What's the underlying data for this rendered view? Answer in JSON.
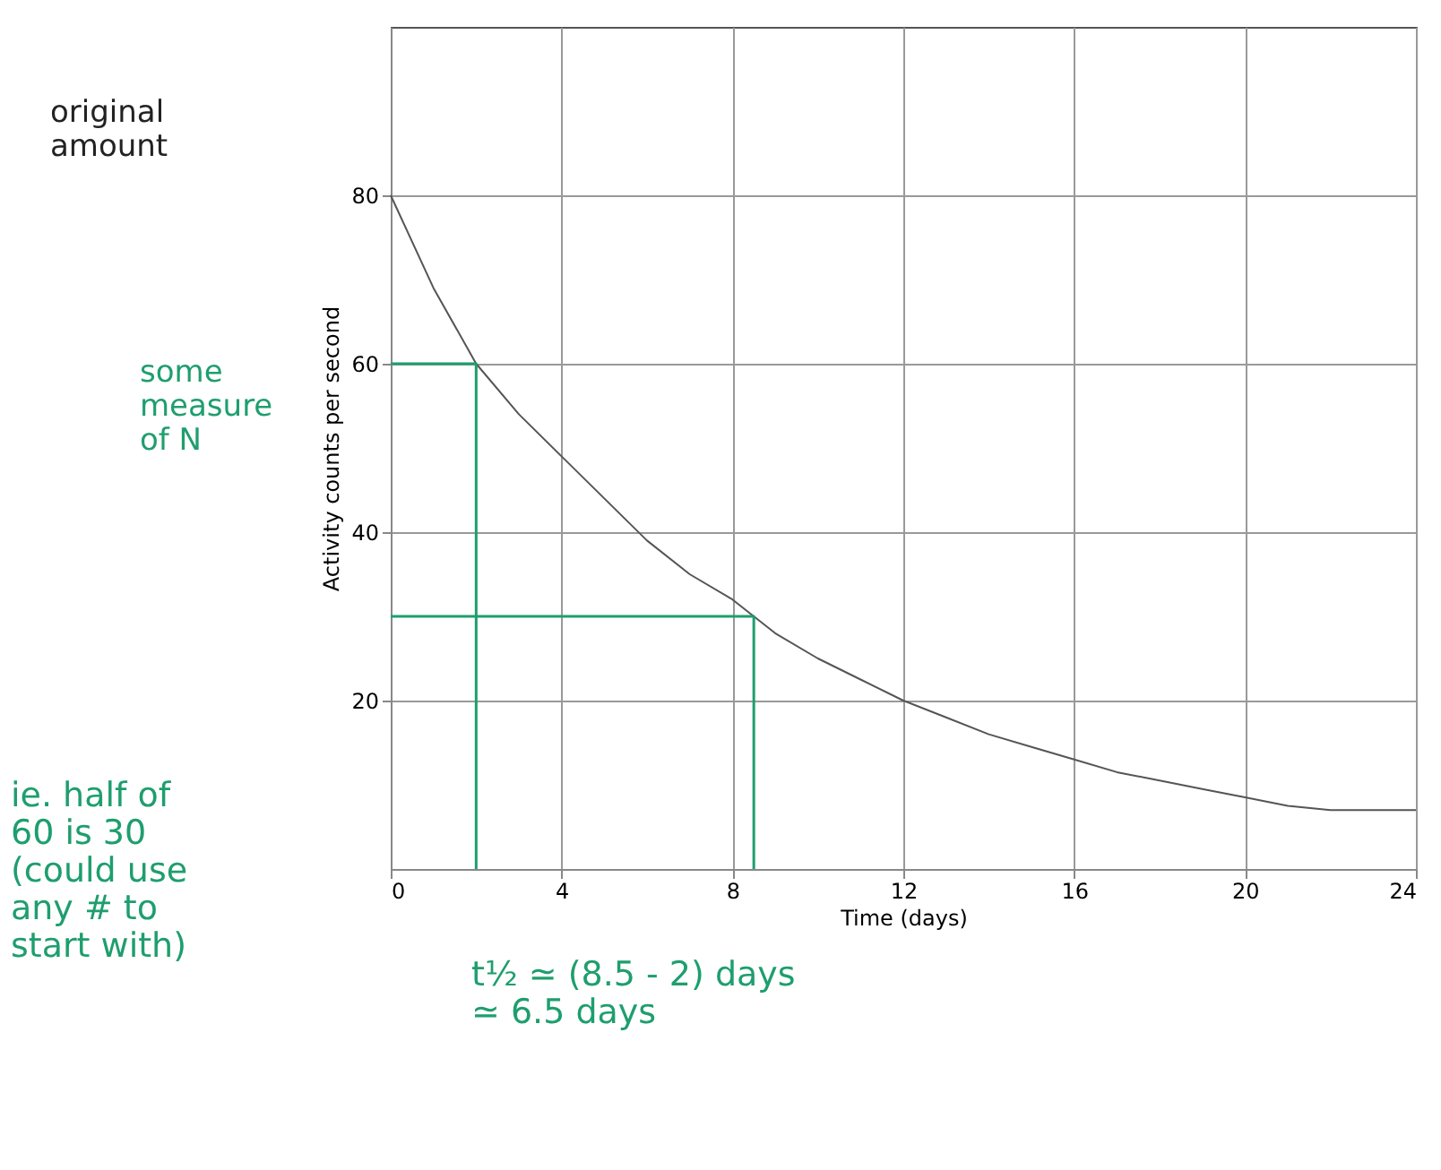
{
  "chart_data": {
    "type": "line",
    "xlabel": "Time (days)",
    "ylabel": "Activity counts per second",
    "xlim": [
      0,
      24
    ],
    "ylim": [
      0,
      100
    ],
    "xticks": [
      0,
      4,
      8,
      12,
      16,
      20,
      24
    ],
    "yticks": [
      20,
      40,
      60,
      80
    ],
    "grid": true,
    "marker": "none",
    "series": [
      {
        "color": "#555555",
        "x": [
          0,
          1,
          2,
          3,
          4,
          5,
          6,
          7,
          8,
          9,
          10,
          11,
          12,
          13,
          14,
          15,
          16,
          17,
          18,
          19,
          20,
          21,
          22,
          23,
          24
        ],
        "values": [
          80,
          69,
          60,
          54,
          49,
          44,
          39,
          35,
          32,
          28,
          25,
          22.5,
          20,
          18,
          16,
          14.5,
          13,
          11.5,
          10.5,
          9.5,
          8.5,
          7.5,
          7,
          7,
          7
        ]
      },
      {
        "color": "#1e9e6e",
        "x": [
          0,
          2,
          2
        ],
        "values": [
          60,
          60,
          0
        ]
      },
      {
        "color": "#1e9e6e",
        "x": [
          0,
          8.5,
          8.5
        ],
        "values": [
          30,
          30,
          0
        ]
      }
    ],
    "annotations": [
      "original\namount",
      "some\nmeasure\nof N",
      "ie. half of\n60 is 30\n(could use\nany # to\nstart with)",
      "t½ ≃ (8.5 - 2) days\n    ≃ 6.5 days"
    ]
  }
}
